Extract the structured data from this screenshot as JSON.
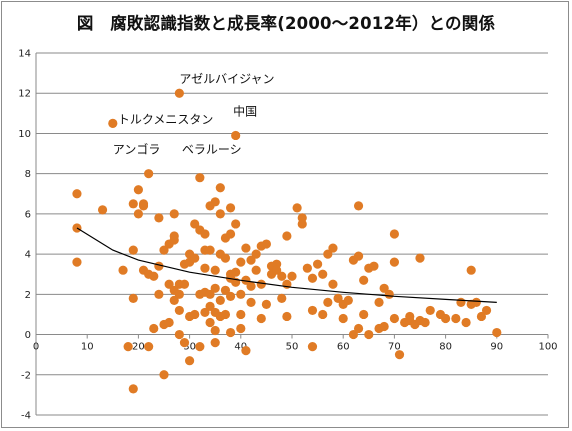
{
  "chart_data": {
    "type": "scatter",
    "title": "図　腐敗認識指数と成長率(2000～2012年）との関係",
    "xlabel": "",
    "ylabel": "",
    "xlim": [
      0,
      100
    ],
    "ylim": [
      -4,
      14
    ],
    "x_ticks": [
      "0",
      "10",
      "20",
      "30",
      "40",
      "50",
      "60",
      "70",
      "80",
      "90",
      "100"
    ],
    "y_ticks": [
      "-4",
      "-2",
      "0",
      "2",
      "4",
      "6",
      "8",
      "10",
      "12",
      "14"
    ],
    "grid": "horizontal",
    "legend": "none",
    "marker_color": "#e07b25",
    "trend_color": "#000000",
    "annotations": [
      {
        "text": "アゼルバイジャン",
        "x": 28,
        "y": 12.5
      },
      {
        "text": "トルクメニスタン",
        "x": 16,
        "y": 10.5
      },
      {
        "text": "中国",
        "x": 38.5,
        "y": 10.9
      },
      {
        "text": "アンゴラ",
        "x": 15,
        "y": 9.0
      },
      {
        "text": "ベラルーシ",
        "x": 28.5,
        "y": 9.0
      }
    ],
    "trendline": [
      [
        8,
        5.3
      ],
      [
        15,
        4.2
      ],
      [
        20,
        3.7
      ],
      [
        30,
        3.1
      ],
      [
        40,
        2.7
      ],
      [
        50,
        2.35
      ],
      [
        60,
        2.1
      ],
      [
        70,
        1.9
      ],
      [
        80,
        1.75
      ],
      [
        90,
        1.6
      ]
    ],
    "points": [
      [
        8,
        7.0
      ],
      [
        8,
        5.3
      ],
      [
        8,
        3.6
      ],
      [
        13,
        6.2
      ],
      [
        15,
        10.5
      ],
      [
        17,
        3.2
      ],
      [
        18,
        -0.6
      ],
      [
        19,
        6.5
      ],
      [
        19,
        1.8
      ],
      [
        19,
        -2.7
      ],
      [
        19,
        4.2
      ],
      [
        20,
        7.2
      ],
      [
        20,
        6.0
      ],
      [
        21,
        6.4
      ],
      [
        21,
        6.5
      ],
      [
        21,
        3.2
      ],
      [
        22,
        8.0
      ],
      [
        22,
        3.0
      ],
      [
        22,
        -0.6
      ],
      [
        23,
        0.3
      ],
      [
        23,
        2.9
      ],
      [
        24,
        3.4
      ],
      [
        24,
        2.0
      ],
      [
        24,
        5.8
      ],
      [
        25,
        -2.0
      ],
      [
        25,
        4.2
      ],
      [
        25,
        0.5
      ],
      [
        26,
        4.5
      ],
      [
        26,
        2.5
      ],
      [
        26,
        0.6
      ],
      [
        27,
        4.9
      ],
      [
        27,
        6.0
      ],
      [
        27,
        2.2
      ],
      [
        27,
        1.7
      ],
      [
        27,
        4.7
      ],
      [
        28,
        12.0
      ],
      [
        28,
        2.0
      ],
      [
        28,
        2.5
      ],
      [
        28,
        1.2
      ],
      [
        28,
        0.0
      ],
      [
        29,
        3.5
      ],
      [
        29,
        2.5
      ],
      [
        29,
        -0.4
      ],
      [
        30,
        4.0
      ],
      [
        30,
        3.6
      ],
      [
        30,
        -1.3
      ],
      [
        30,
        0.9
      ],
      [
        31,
        5.5
      ],
      [
        31,
        3.8
      ],
      [
        31,
        1.0
      ],
      [
        32,
        7.8
      ],
      [
        32,
        5.2
      ],
      [
        32,
        2.0
      ],
      [
        32,
        -0.6
      ],
      [
        33,
        5.0
      ],
      [
        33,
        3.3
      ],
      [
        33,
        1.1
      ],
      [
        33,
        4.2
      ],
      [
        33,
        2.1
      ],
      [
        34,
        6.4
      ],
      [
        34,
        4.2
      ],
      [
        34,
        2.0
      ],
      [
        34,
        1.4
      ],
      [
        34,
        0.6
      ],
      [
        35,
        6.6
      ],
      [
        35,
        3.2
      ],
      [
        35,
        2.3
      ],
      [
        35,
        1.1
      ],
      [
        35,
        0.2
      ],
      [
        35,
        -0.4
      ],
      [
        36,
        7.3
      ],
      [
        36,
        6.0
      ],
      [
        36,
        4.0
      ],
      [
        36,
        1.7
      ],
      [
        36,
        0.9
      ],
      [
        37,
        4.8
      ],
      [
        37,
        3.8
      ],
      [
        37,
        2.2
      ],
      [
        37,
        1.0
      ],
      [
        38,
        6.3
      ],
      [
        38,
        5.0
      ],
      [
        38,
        3.0
      ],
      [
        38,
        2.8
      ],
      [
        38,
        1.9
      ],
      [
        38,
        0.1
      ],
      [
        39,
        9.9
      ],
      [
        39,
        5.5
      ],
      [
        39,
        3.1
      ],
      [
        39,
        2.6
      ],
      [
        40,
        3.6
      ],
      [
        40,
        2.0
      ],
      [
        40,
        1.0
      ],
      [
        40,
        0.3
      ],
      [
        41,
        4.3
      ],
      [
        41,
        2.7
      ],
      [
        41,
        -0.8
      ],
      [
        42,
        3.7
      ],
      [
        42,
        2.4
      ],
      [
        42,
        1.6
      ],
      [
        43,
        4.0
      ],
      [
        43,
        3.2
      ],
      [
        44,
        4.4
      ],
      [
        44,
        2.5
      ],
      [
        44,
        0.8
      ],
      [
        45,
        4.5
      ],
      [
        45,
        1.5
      ],
      [
        46,
        3.4
      ],
      [
        46,
        3.0
      ],
      [
        47,
        3.5
      ],
      [
        47,
        3.2
      ],
      [
        48,
        1.8
      ],
      [
        48,
        2.9
      ],
      [
        49,
        4.9
      ],
      [
        49,
        2.5
      ],
      [
        49,
        0.9
      ],
      [
        50,
        2.9
      ],
      [
        51,
        6.3
      ],
      [
        52,
        5.8
      ],
      [
        52,
        5.5
      ],
      [
        53,
        3.3
      ],
      [
        54,
        1.2
      ],
      [
        54,
        2.8
      ],
      [
        54,
        -0.6
      ],
      [
        55,
        3.5
      ],
      [
        56,
        3.0
      ],
      [
        56,
        1.0
      ],
      [
        57,
        1.6
      ],
      [
        57,
        4.0
      ],
      [
        58,
        4.3
      ],
      [
        58,
        2.5
      ],
      [
        59,
        1.8
      ],
      [
        60,
        1.5
      ],
      [
        60,
        0.8
      ],
      [
        61,
        1.7
      ],
      [
        62,
        3.7
      ],
      [
        62,
        0.0
      ],
      [
        63,
        6.4
      ],
      [
        63,
        0.3
      ],
      [
        63,
        3.9
      ],
      [
        64,
        2.7
      ],
      [
        64,
        1.0
      ],
      [
        65,
        3.3
      ],
      [
        65,
        0.0
      ],
      [
        66,
        3.4
      ],
      [
        67,
        1.6
      ],
      [
        67,
        0.3
      ],
      [
        68,
        2.3
      ],
      [
        68,
        0.4
      ],
      [
        69,
        2.0
      ],
      [
        70,
        5.0
      ],
      [
        70,
        3.6
      ],
      [
        70,
        0.8
      ],
      [
        71,
        -1.0
      ],
      [
        72,
        0.6
      ],
      [
        73,
        0.7
      ],
      [
        73,
        0.9
      ],
      [
        74,
        0.5
      ],
      [
        75,
        3.8
      ],
      [
        75,
        0.7
      ],
      [
        76,
        0.6
      ],
      [
        77,
        1.2
      ],
      [
        79,
        1.0
      ],
      [
        80,
        0.8
      ],
      [
        82,
        0.8
      ],
      [
        83,
        1.6
      ],
      [
        84,
        0.6
      ],
      [
        85,
        1.5
      ],
      [
        85,
        3.2
      ],
      [
        86,
        1.6
      ],
      [
        87,
        0.9
      ],
      [
        88,
        1.2
      ],
      [
        90,
        0.1
      ]
    ]
  }
}
